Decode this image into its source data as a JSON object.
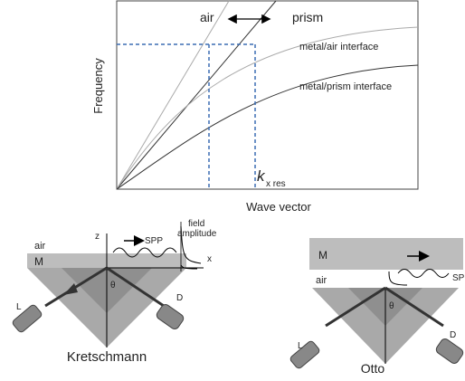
{
  "plot": {
    "line_labels": {
      "air": "air",
      "prism": "prism",
      "metal_air": "metal/air interface",
      "metal_prism": "metal/prism interface"
    },
    "y_axis_label": "Frequency",
    "x_axis_label": "Wave vector",
    "k_symbol": "k",
    "k_subscript": "x res"
  },
  "kretschmann": {
    "air": "air",
    "metal": "M",
    "z": "z",
    "spp": "SPP",
    "field": [
      "field",
      "amplitude"
    ],
    "x": "x",
    "theta": "θ",
    "laser": "L",
    "detector": "D",
    "caption": "Kretschmann"
  },
  "otto": {
    "metal": "M",
    "air": "air",
    "sp": "SP",
    "theta": "θ",
    "laser": "L",
    "detector": "D",
    "caption": "Otto"
  }
}
